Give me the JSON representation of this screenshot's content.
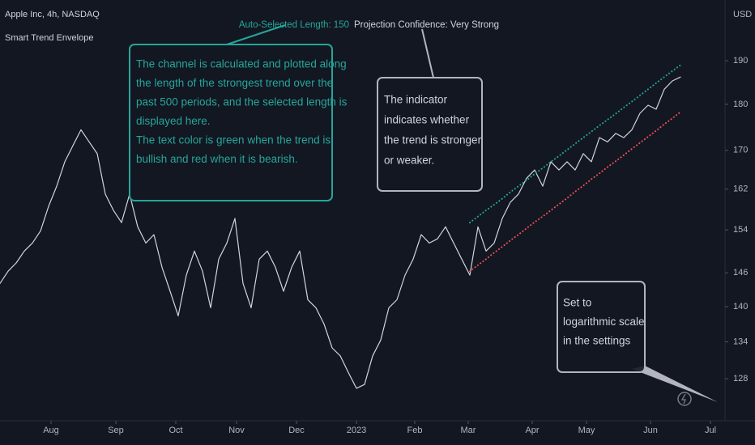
{
  "chart_data": {
    "type": "line",
    "title": "Apple Inc, 4h, NASDAQ",
    "subtitle": "Smart Trend Envelope",
    "y_axis_label": "USD",
    "log_scale": true,
    "status": {
      "length": "Auto-Selected Length: 150",
      "confidence": "Projection Confidence: Very Strong"
    },
    "xlim": [
      0,
      89.5
    ],
    "xticks": [
      {
        "value": 6.3,
        "label": "Aug"
      },
      {
        "value": 14.3,
        "label": "Sep"
      },
      {
        "value": 21.7,
        "label": "Oct"
      },
      {
        "value": 29.2,
        "label": "Nov"
      },
      {
        "value": 36.6,
        "label": "Dec"
      },
      {
        "value": 44.0,
        "label": "2023"
      },
      {
        "value": 51.2,
        "label": "Feb"
      },
      {
        "value": 57.8,
        "label": "Mar"
      },
      {
        "value": 65.7,
        "label": "Apr"
      },
      {
        "value": 72.4,
        "label": "May"
      },
      {
        "value": 80.3,
        "label": "Jun"
      },
      {
        "value": 87.7,
        "label": "Jul"
      }
    ],
    "ylim": [
      121.5,
      204.9
    ],
    "yticks": [
      128,
      134,
      140,
      146,
      154,
      162,
      170,
      180,
      190
    ],
    "series": [
      {
        "color": "#d1d4dc",
        "style": "solid",
        "values": [
          144.1,
          146.3,
          147.8,
          150.0,
          151.5,
          153.8,
          158.6,
          162.6,
          167.6,
          171.0,
          174.4,
          171.8,
          169.3,
          161.0,
          157.8,
          155.4,
          161.0,
          154.6,
          151.5,
          153.1,
          147.0,
          142.7,
          138.4,
          145.6,
          150.0,
          146.3,
          139.8,
          148.5,
          151.5,
          156.2,
          144.1,
          139.8,
          148.5,
          150.0,
          147.0,
          142.7,
          147.0,
          150.0,
          141.2,
          139.8,
          137.0,
          133.0,
          131.7,
          129.0,
          126.5,
          127.1,
          131.7,
          134.3,
          139.8,
          141.2,
          145.6,
          148.5,
          153.1,
          151.5,
          152.3,
          154.6,
          151.5,
          148.5,
          145.6,
          154.6,
          150.0,
          151.5,
          156.2,
          159.4,
          161.0,
          164.2,
          165.9,
          162.6,
          167.6,
          165.9,
          167.6,
          165.9,
          169.3,
          167.6,
          172.7,
          171.8,
          173.6,
          172.7,
          174.4,
          178.0,
          179.8,
          178.9,
          183.4,
          185.3,
          186.2
        ]
      },
      {
        "color": "#26a69a",
        "style": "dotted",
        "values": [
          null,
          null,
          null,
          null,
          null,
          null,
          null,
          null,
          null,
          null,
          null,
          null,
          null,
          null,
          null,
          null,
          null,
          null,
          null,
          null,
          null,
          null,
          null,
          null,
          null,
          null,
          null,
          null,
          null,
          null,
          null,
          null,
          null,
          null,
          null,
          null,
          null,
          null,
          null,
          null,
          null,
          null,
          null,
          null,
          null,
          null,
          null,
          null,
          null,
          null,
          null,
          null,
          null,
          null,
          null,
          null,
          null,
          null,
          155.4,
          156.6,
          157.8,
          158.9,
          160.1,
          161.4,
          162.6,
          163.8,
          165.1,
          166.3,
          167.6,
          168.8,
          170.1,
          171.4,
          172.7,
          174.0,
          175.3,
          176.6,
          177.9,
          179.3,
          180.6,
          182.0,
          183.4,
          184.8,
          186.2,
          187.6,
          189.0
        ]
      },
      {
        "color": "#ef5350",
        "style": "dotted",
        "values": [
          null,
          null,
          null,
          null,
          null,
          null,
          null,
          null,
          null,
          null,
          null,
          null,
          null,
          null,
          null,
          null,
          null,
          null,
          null,
          null,
          null,
          null,
          null,
          null,
          null,
          null,
          null,
          null,
          null,
          null,
          null,
          null,
          null,
          null,
          null,
          null,
          null,
          null,
          null,
          null,
          null,
          null,
          null,
          null,
          null,
          null,
          null,
          null,
          null,
          null,
          null,
          null,
          null,
          null,
          null,
          null,
          null,
          null,
          146.3,
          147.4,
          148.5,
          149.7,
          150.8,
          152.0,
          153.1,
          154.3,
          155.5,
          156.6,
          157.8,
          159.0,
          160.2,
          161.5,
          162.7,
          164.0,
          165.2,
          166.5,
          167.7,
          169.0,
          170.3,
          171.6,
          172.9,
          174.2,
          175.6,
          176.9,
          178.3
        ]
      }
    ],
    "annotations": [
      {
        "color": "#26a69a",
        "lines": [
          "The channel is calculated and plotted along",
          "the length of the strongest trend over the",
          "past 500 periods, and the selected length is",
          "displayed here.",
          "The text color is green when the trend is",
          "bullish and red when it is bearish."
        ]
      },
      {
        "color": "#d1d4dc",
        "lines": [
          "The indicator",
          "indicates whether",
          "the trend is stronger",
          "or weaker."
        ]
      },
      {
        "color": "#d1d4dc",
        "lines": [
          "Set to",
          "logarithmic scale",
          "in the settings"
        ]
      }
    ]
  }
}
